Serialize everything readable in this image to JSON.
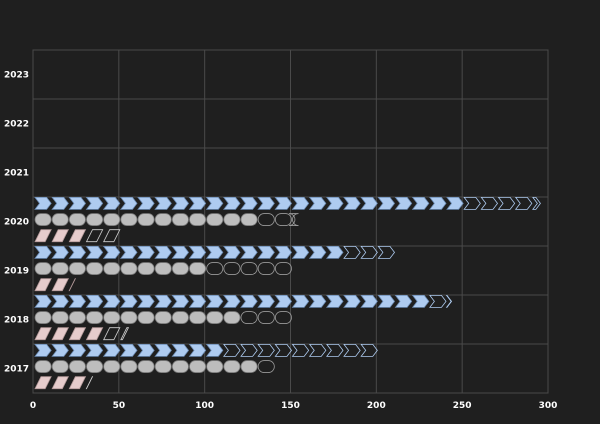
{
  "chart_data": {
    "type": "bar",
    "orientation": "horizontal",
    "style": "pictorial",
    "categories": [
      "2017",
      "2018",
      "2019",
      "2020",
      "2021",
      "2022",
      "2023"
    ],
    "series": [
      {
        "values": [
          108,
          222,
          180,
          243,
          null,
          null,
          null
        ],
        "totals": [
          200,
          243,
          210,
          295,
          null,
          null,
          null
        ],
        "color": "#aecbf0",
        "shape": "chevron"
      },
      {
        "values": [
          130,
          120,
          98,
          130,
          null,
          null,
          null
        ],
        "totals": [
          140,
          150,
          150,
          152,
          null,
          null,
          null
        ],
        "color": "#bdbdbd",
        "shape": "pill"
      },
      {
        "values": [
          24,
          34,
          24,
          24,
          null,
          null,
          null
        ],
        "totals": [
          34,
          55,
          24,
          50,
          null,
          null,
          null
        ],
        "color": "#e6cccc",
        "shape": "parallelogram"
      }
    ],
    "xlim": [
      0,
      300
    ],
    "xticks": [
      0,
      50,
      100,
      150,
      200,
      250,
      300
    ],
    "grid": true,
    "background": "#1f1f1f",
    "outline_color": "#aecbf0"
  }
}
